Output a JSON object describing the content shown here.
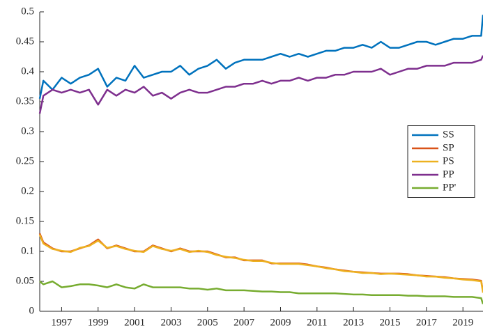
{
  "chart_data": {
    "type": "line",
    "x": [
      1995.8,
      1996,
      1996.5,
      1997,
      1997.5,
      1998,
      1998.5,
      1999,
      1999.5,
      2000,
      2000.5,
      2001,
      2001.5,
      2002,
      2002.5,
      2003,
      2003.5,
      2004,
      2004.5,
      2005,
      2005.5,
      2006,
      2006.5,
      2007,
      2007.5,
      2008,
      2008.5,
      2009,
      2009.5,
      2010,
      2010.5,
      2011,
      2011.5,
      2012,
      2012.5,
      2013,
      2013.5,
      2014,
      2014.5,
      2015,
      2015.5,
      2016,
      2016.5,
      2017,
      2017.5,
      2018,
      2018.5,
      2019,
      2019.5,
      2020,
      2020.1
    ],
    "series": [
      {
        "name": "SS",
        "color": "#0072bd",
        "values": [
          0.355,
          0.385,
          0.37,
          0.39,
          0.38,
          0.39,
          0.395,
          0.405,
          0.375,
          0.39,
          0.385,
          0.41,
          0.39,
          0.395,
          0.4,
          0.4,
          0.41,
          0.395,
          0.405,
          0.41,
          0.42,
          0.405,
          0.415,
          0.42,
          0.42,
          0.42,
          0.425,
          0.43,
          0.425,
          0.43,
          0.425,
          0.43,
          0.435,
          0.435,
          0.44,
          0.44,
          0.445,
          0.44,
          0.45,
          0.44,
          0.44,
          0.445,
          0.45,
          0.45,
          0.445,
          0.45,
          0.455,
          0.455,
          0.46,
          0.46,
          0.495
        ]
      },
      {
        "name": "SP",
        "color": "#d95319",
        "values": [
          0.13,
          0.115,
          0.105,
          0.1,
          0.1,
          0.105,
          0.11,
          0.12,
          0.105,
          0.11,
          0.105,
          0.1,
          0.1,
          0.11,
          0.105,
          0.1,
          0.105,
          0.1,
          0.1,
          0.1,
          0.095,
          0.09,
          0.09,
          0.085,
          0.085,
          0.085,
          0.08,
          0.08,
          0.08,
          0.08,
          0.078,
          0.075,
          0.073,
          0.07,
          0.068,
          0.066,
          0.065,
          0.064,
          0.063,
          0.063,
          0.063,
          0.062,
          0.06,
          0.059,
          0.058,
          0.057,
          0.055,
          0.054,
          0.053,
          0.051,
          0.033
        ]
      },
      {
        "name": "PS",
        "color": "#edb120",
        "values": [
          0.128,
          0.113,
          0.104,
          0.101,
          0.099,
          0.106,
          0.109,
          0.118,
          0.106,
          0.109,
          0.104,
          0.101,
          0.099,
          0.109,
          0.104,
          0.101,
          0.104,
          0.099,
          0.101,
          0.099,
          0.094,
          0.091,
          0.089,
          0.086,
          0.084,
          0.084,
          0.081,
          0.079,
          0.079,
          0.079,
          0.077,
          0.075,
          0.072,
          0.07,
          0.067,
          0.066,
          0.064,
          0.064,
          0.062,
          0.063,
          0.062,
          0.061,
          0.06,
          0.058,
          0.058,
          0.056,
          0.055,
          0.053,
          0.052,
          0.05,
          0.031
        ]
      },
      {
        "name": "PP",
        "color": "#7e2f8e",
        "values": [
          0.33,
          0.36,
          0.37,
          0.365,
          0.37,
          0.365,
          0.37,
          0.345,
          0.37,
          0.36,
          0.37,
          0.365,
          0.375,
          0.36,
          0.365,
          0.355,
          0.365,
          0.37,
          0.365,
          0.365,
          0.37,
          0.375,
          0.375,
          0.38,
          0.38,
          0.385,
          0.38,
          0.385,
          0.385,
          0.39,
          0.385,
          0.39,
          0.39,
          0.395,
          0.395,
          0.4,
          0.4,
          0.4,
          0.405,
          0.395,
          0.4,
          0.405,
          0.405,
          0.41,
          0.41,
          0.41,
          0.415,
          0.415,
          0.415,
          0.42,
          0.427
        ]
      },
      {
        "name": "PP'",
        "color": "#77ac30",
        "values": [
          0.05,
          0.045,
          0.05,
          0.04,
          0.042,
          0.045,
          0.045,
          0.043,
          0.04,
          0.045,
          0.04,
          0.038,
          0.045,
          0.04,
          0.04,
          0.04,
          0.04,
          0.038,
          0.038,
          0.036,
          0.038,
          0.035,
          0.035,
          0.035,
          0.034,
          0.033,
          0.033,
          0.032,
          0.032,
          0.03,
          0.03,
          0.03,
          0.03,
          0.03,
          0.029,
          0.028,
          0.028,
          0.027,
          0.027,
          0.027,
          0.027,
          0.026,
          0.026,
          0.025,
          0.025,
          0.025,
          0.024,
          0.024,
          0.024,
          0.022,
          0.012
        ]
      }
    ],
    "xlim": [
      1995.8,
      2020.1
    ],
    "xticks": [
      1997,
      1999,
      2001,
      2003,
      2005,
      2007,
      2009,
      2011,
      2013,
      2015,
      2017,
      2019
    ],
    "ylim": [
      0,
      0.5
    ],
    "yticks": [
      0,
      0.05,
      0.1,
      0.15,
      0.2,
      0.25,
      0.3,
      0.35,
      0.4,
      0.45,
      0.5
    ],
    "grid": false,
    "legend": "east"
  }
}
